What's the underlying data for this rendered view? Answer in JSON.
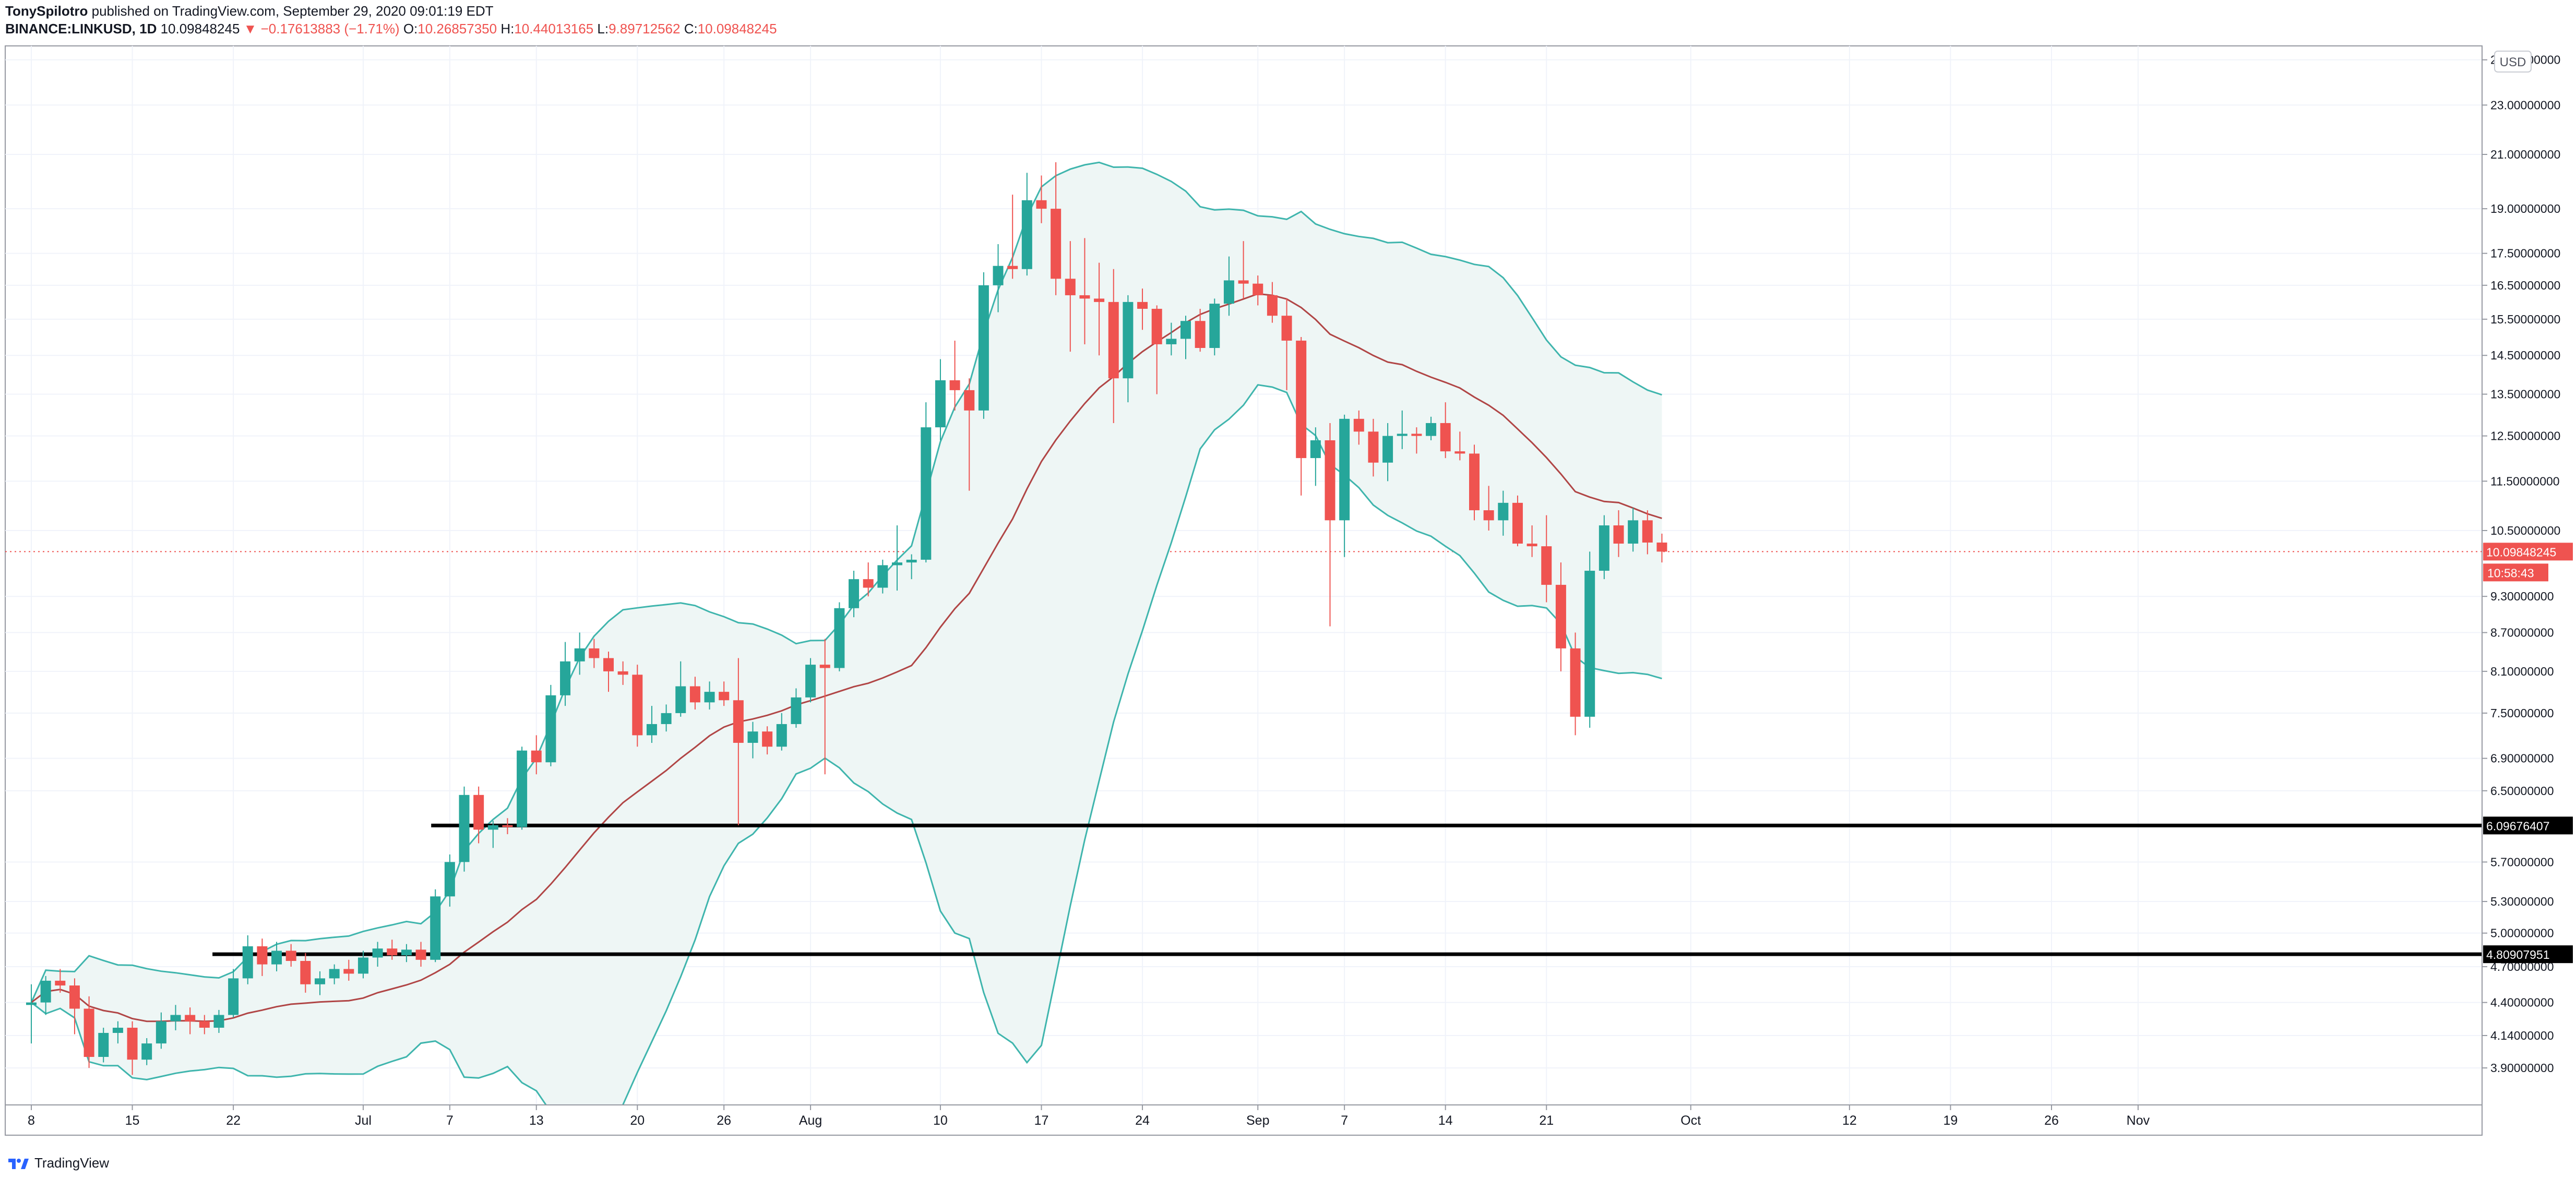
{
  "header": {
    "author": "TonySpilotro",
    "published": "published on TradingView.com, September 29, 2020 09:01:19 EDT",
    "symbol": "BINANCE:LINKUSD, 1D",
    "last": "10.09848245",
    "change": "▼ −0.17613883 (−1.71%)",
    "o_label": "O:",
    "o_value": "10.26857350",
    "h_label": "H:",
    "h_value": "10.44013165",
    "l_label": "L:",
    "l_value": "9.89712562",
    "c_label": "C:",
    "c_value": "10.09848245"
  },
  "footer": {
    "brand": "TradingView"
  },
  "chart_data": {
    "type": "candlestick",
    "title": "BINANCE:LINKUSD, 1D",
    "currency": "USD",
    "x_ticks": [
      "8",
      "15",
      "22",
      "Jul",
      "7",
      "13",
      "20",
      "26",
      "Aug",
      "10",
      "17",
      "24",
      "Sep",
      "7",
      "14",
      "21",
      "Oct",
      "12",
      "19",
      "26",
      "Nov"
    ],
    "y_ticks": [
      "25.00000000",
      "23.00000000",
      "21.00000000",
      "19.00000000",
      "17.50000000",
      "16.50000000",
      "15.50000000",
      "14.50000000",
      "13.50000000",
      "12.50000000",
      "11.50000000",
      "10.50000000",
      "9.30000000",
      "8.70000000",
      "8.10000000",
      "7.50000000",
      "6.90000000",
      "6.50000000",
      "5.70000000",
      "5.30000000",
      "5.00000000",
      "4.70000000",
      "4.40000000",
      "4.14000000",
      "3.90000000"
    ],
    "price_label": "10.09848245",
    "countdown_label": "10:58:43",
    "horizontal_lines": [
      {
        "value": 6.09676407,
        "label": "6.09676407"
      },
      {
        "value": 4.80907951,
        "label": "4.80907951"
      }
    ],
    "colors": {
      "up": "#26a69a",
      "down": "#ef5350",
      "basis": "#b04545",
      "band": "#3fb5ad",
      "band_fill": "#eef6f5",
      "line": "#000000"
    },
    "candles": [
      {
        "date": "2020-06-08",
        "o": 4.38,
        "h": 4.55,
        "l": 4.08,
        "c": 4.4
      },
      {
        "date": "2020-06-09",
        "o": 4.4,
        "h": 4.62,
        "l": 4.3,
        "c": 4.58
      },
      {
        "date": "2020-06-10",
        "o": 4.58,
        "h": 4.68,
        "l": 4.48,
        "c": 4.54
      },
      {
        "date": "2020-06-11",
        "o": 4.54,
        "h": 4.6,
        "l": 4.15,
        "c": 4.35
      },
      {
        "date": "2020-06-12",
        "o": 4.35,
        "h": 4.45,
        "l": 3.9,
        "c": 3.98
      },
      {
        "date": "2020-06-13",
        "o": 3.98,
        "h": 4.2,
        "l": 3.94,
        "c": 4.16
      },
      {
        "date": "2020-06-14",
        "o": 4.16,
        "h": 4.25,
        "l": 4.08,
        "c": 4.2
      },
      {
        "date": "2020-06-15",
        "o": 4.2,
        "h": 4.25,
        "l": 3.85,
        "c": 3.96
      },
      {
        "date": "2020-06-16",
        "o": 3.96,
        "h": 4.12,
        "l": 3.92,
        "c": 4.08
      },
      {
        "date": "2020-06-17",
        "o": 4.08,
        "h": 4.32,
        "l": 4.04,
        "c": 4.25
      },
      {
        "date": "2020-06-18",
        "o": 4.25,
        "h": 4.38,
        "l": 4.18,
        "c": 4.3
      },
      {
        "date": "2020-06-19",
        "o": 4.3,
        "h": 4.36,
        "l": 4.15,
        "c": 4.25
      },
      {
        "date": "2020-06-20",
        "o": 4.25,
        "h": 4.3,
        "l": 4.15,
        "c": 4.2
      },
      {
        "date": "2020-06-21",
        "o": 4.2,
        "h": 4.34,
        "l": 4.16,
        "c": 4.3
      },
      {
        "date": "2020-06-22",
        "o": 4.3,
        "h": 4.68,
        "l": 4.28,
        "c": 4.6
      },
      {
        "date": "2020-06-23",
        "o": 4.6,
        "h": 4.98,
        "l": 4.55,
        "c": 4.88
      },
      {
        "date": "2020-06-24",
        "o": 4.88,
        "h": 4.95,
        "l": 4.62,
        "c": 4.72
      },
      {
        "date": "2020-06-25",
        "o": 4.72,
        "h": 4.92,
        "l": 4.66,
        "c": 4.84
      },
      {
        "date": "2020-06-26",
        "o": 4.84,
        "h": 4.9,
        "l": 4.7,
        "c": 4.75
      },
      {
        "date": "2020-06-27",
        "o": 4.75,
        "h": 4.82,
        "l": 4.48,
        "c": 4.55
      },
      {
        "date": "2020-06-28",
        "o": 4.55,
        "h": 4.66,
        "l": 4.46,
        "c": 4.6
      },
      {
        "date": "2020-06-29",
        "o": 4.6,
        "h": 4.72,
        "l": 4.55,
        "c": 4.68
      },
      {
        "date": "2020-06-30",
        "o": 4.68,
        "h": 4.76,
        "l": 4.58,
        "c": 4.64
      },
      {
        "date": "2020-07-01",
        "o": 4.64,
        "h": 4.84,
        "l": 4.6,
        "c": 4.78
      },
      {
        "date": "2020-07-02",
        "o": 4.78,
        "h": 4.92,
        "l": 4.7,
        "c": 4.86
      },
      {
        "date": "2020-07-03",
        "o": 4.86,
        "h": 4.94,
        "l": 4.76,
        "c": 4.8
      },
      {
        "date": "2020-07-04",
        "o": 4.8,
        "h": 4.9,
        "l": 4.74,
        "c": 4.85
      },
      {
        "date": "2020-07-05",
        "o": 4.85,
        "h": 4.92,
        "l": 4.7,
        "c": 4.76
      },
      {
        "date": "2020-07-06",
        "o": 4.76,
        "h": 5.42,
        "l": 4.74,
        "c": 5.35
      },
      {
        "date": "2020-07-07",
        "o": 5.35,
        "h": 5.78,
        "l": 5.25,
        "c": 5.7
      },
      {
        "date": "2020-07-08",
        "o": 5.7,
        "h": 6.55,
        "l": 5.6,
        "c": 6.45
      },
      {
        "date": "2020-07-09",
        "o": 6.45,
        "h": 6.55,
        "l": 5.9,
        "c": 6.05
      },
      {
        "date": "2020-07-10",
        "o": 6.05,
        "h": 6.15,
        "l": 5.85,
        "c": 6.1
      },
      {
        "date": "2020-07-11",
        "o": 6.1,
        "h": 6.18,
        "l": 6.0,
        "c": 6.08
      },
      {
        "date": "2020-07-12",
        "o": 6.08,
        "h": 7.05,
        "l": 6.05,
        "c": 7.0
      },
      {
        "date": "2020-07-13",
        "o": 7.0,
        "h": 7.2,
        "l": 6.7,
        "c": 6.85
      },
      {
        "date": "2020-07-14",
        "o": 6.85,
        "h": 7.9,
        "l": 6.8,
        "c": 7.75
      },
      {
        "date": "2020-07-15",
        "o": 7.75,
        "h": 8.55,
        "l": 7.6,
        "c": 8.25
      },
      {
        "date": "2020-07-16",
        "o": 8.25,
        "h": 8.7,
        "l": 8.05,
        "c": 8.45
      },
      {
        "date": "2020-07-17",
        "o": 8.45,
        "h": 8.6,
        "l": 8.15,
        "c": 8.3
      },
      {
        "date": "2020-07-18",
        "o": 8.3,
        "h": 8.4,
        "l": 7.8,
        "c": 8.1
      },
      {
        "date": "2020-07-19",
        "o": 8.1,
        "h": 8.25,
        "l": 7.9,
        "c": 8.05
      },
      {
        "date": "2020-07-20",
        "o": 8.05,
        "h": 8.2,
        "l": 7.05,
        "c": 7.2
      },
      {
        "date": "2020-07-21",
        "o": 7.2,
        "h": 7.6,
        "l": 7.1,
        "c": 7.35
      },
      {
        "date": "2020-07-22",
        "o": 7.35,
        "h": 7.62,
        "l": 7.25,
        "c": 7.5
      },
      {
        "date": "2020-07-23",
        "o": 7.5,
        "h": 8.25,
        "l": 7.45,
        "c": 7.88
      },
      {
        "date": "2020-07-24",
        "o": 7.88,
        "h": 8.02,
        "l": 7.55,
        "c": 7.65
      },
      {
        "date": "2020-07-25",
        "o": 7.65,
        "h": 7.95,
        "l": 7.55,
        "c": 7.8
      },
      {
        "date": "2020-07-26",
        "o": 7.8,
        "h": 7.95,
        "l": 7.6,
        "c": 7.68
      },
      {
        "date": "2020-07-27",
        "o": 7.68,
        "h": 8.3,
        "l": 6.1,
        "c": 7.1
      },
      {
        "date": "2020-07-28",
        "o": 7.1,
        "h": 7.38,
        "l": 6.9,
        "c": 7.25
      },
      {
        "date": "2020-07-29",
        "o": 7.25,
        "h": 7.32,
        "l": 6.95,
        "c": 7.05
      },
      {
        "date": "2020-07-30",
        "o": 7.05,
        "h": 7.5,
        "l": 7.0,
        "c": 7.35
      },
      {
        "date": "2020-07-31",
        "o": 7.35,
        "h": 7.85,
        "l": 7.3,
        "c": 7.72
      },
      {
        "date": "2020-08-01",
        "o": 7.72,
        "h": 8.3,
        "l": 7.65,
        "c": 8.2
      },
      {
        "date": "2020-08-02",
        "o": 8.2,
        "h": 8.6,
        "l": 6.7,
        "c": 8.15
      },
      {
        "date": "2020-08-03",
        "o": 8.15,
        "h": 9.2,
        "l": 8.1,
        "c": 9.1
      },
      {
        "date": "2020-08-04",
        "o": 9.1,
        "h": 9.75,
        "l": 8.95,
        "c": 9.6
      },
      {
        "date": "2020-08-05",
        "o": 9.6,
        "h": 9.9,
        "l": 9.3,
        "c": 9.45
      },
      {
        "date": "2020-08-06",
        "o": 9.45,
        "h": 9.95,
        "l": 9.35,
        "c": 9.85
      },
      {
        "date": "2020-08-07",
        "o": 9.85,
        "h": 10.6,
        "l": 9.4,
        "c": 9.9
      },
      {
        "date": "2020-08-08",
        "o": 9.9,
        "h": 10.05,
        "l": 9.6,
        "c": 9.95
      },
      {
        "date": "2020-08-09",
        "o": 9.95,
        "h": 13.3,
        "l": 9.9,
        "c": 12.7
      },
      {
        "date": "2020-08-10",
        "o": 12.7,
        "h": 14.4,
        "l": 12.4,
        "c": 13.85
      },
      {
        "date": "2020-08-11",
        "o": 13.85,
        "h": 14.9,
        "l": 13.1,
        "c": 13.6
      },
      {
        "date": "2020-08-12",
        "o": 13.6,
        "h": 13.9,
        "l": 11.3,
        "c": 13.1
      },
      {
        "date": "2020-08-13",
        "o": 13.1,
        "h": 16.9,
        "l": 12.9,
        "c": 16.5
      },
      {
        "date": "2020-08-14",
        "o": 16.5,
        "h": 17.8,
        "l": 15.7,
        "c": 17.1
      },
      {
        "date": "2020-08-15",
        "o": 17.1,
        "h": 19.5,
        "l": 16.7,
        "c": 17.0
      },
      {
        "date": "2020-08-16",
        "o": 17.0,
        "h": 20.3,
        "l": 16.8,
        "c": 19.3
      },
      {
        "date": "2020-08-17",
        "o": 19.3,
        "h": 20.2,
        "l": 18.5,
        "c": 19.0
      },
      {
        "date": "2020-08-18",
        "o": 19.0,
        "h": 20.7,
        "l": 16.2,
        "c": 16.7
      },
      {
        "date": "2020-08-19",
        "o": 16.7,
        "h": 17.9,
        "l": 14.6,
        "c": 16.2
      },
      {
        "date": "2020-08-20",
        "o": 16.2,
        "h": 18.0,
        "l": 14.8,
        "c": 16.1
      },
      {
        "date": "2020-08-21",
        "o": 16.1,
        "h": 17.2,
        "l": 14.5,
        "c": 16.0
      },
      {
        "date": "2020-08-22",
        "o": 16.0,
        "h": 17.0,
        "l": 12.8,
        "c": 13.9
      },
      {
        "date": "2020-08-23",
        "o": 13.9,
        "h": 16.2,
        "l": 13.3,
        "c": 16.0
      },
      {
        "date": "2020-08-24",
        "o": 16.0,
        "h": 16.4,
        "l": 15.2,
        "c": 15.8
      },
      {
        "date": "2020-08-25",
        "o": 15.8,
        "h": 15.9,
        "l": 13.5,
        "c": 14.8
      },
      {
        "date": "2020-08-26",
        "o": 14.8,
        "h": 15.4,
        "l": 14.5,
        "c": 14.95
      },
      {
        "date": "2020-08-27",
        "o": 14.95,
        "h": 15.6,
        "l": 14.4,
        "c": 15.45
      },
      {
        "date": "2020-08-28",
        "o": 15.45,
        "h": 15.8,
        "l": 14.6,
        "c": 14.7
      },
      {
        "date": "2020-08-29",
        "o": 14.7,
        "h": 16.1,
        "l": 14.5,
        "c": 15.95
      },
      {
        "date": "2020-08-30",
        "o": 15.95,
        "h": 17.4,
        "l": 15.6,
        "c": 16.65
      },
      {
        "date": "2020-08-31",
        "o": 16.65,
        "h": 17.9,
        "l": 16.1,
        "c": 16.55
      },
      {
        "date": "2020-09-01",
        "o": 16.55,
        "h": 16.8,
        "l": 15.9,
        "c": 16.2
      },
      {
        "date": "2020-09-02",
        "o": 16.2,
        "h": 16.6,
        "l": 15.4,
        "c": 15.6
      },
      {
        "date": "2020-09-03",
        "o": 15.6,
        "h": 16.1,
        "l": 13.6,
        "c": 14.9
      },
      {
        "date": "2020-09-04",
        "o": 14.9,
        "h": 15.0,
        "l": 11.2,
        "c": 12.0
      },
      {
        "date": "2020-09-05",
        "o": 12.0,
        "h": 12.7,
        "l": 11.4,
        "c": 12.4
      },
      {
        "date": "2020-09-06",
        "o": 12.4,
        "h": 12.8,
        "l": 8.8,
        "c": 10.7
      },
      {
        "date": "2020-09-07",
        "o": 10.7,
        "h": 13.0,
        "l": 10.0,
        "c": 12.9
      },
      {
        "date": "2020-09-08",
        "o": 12.9,
        "h": 13.1,
        "l": 12.3,
        "c": 12.6
      },
      {
        "date": "2020-09-09",
        "o": 12.6,
        "h": 12.9,
        "l": 11.6,
        "c": 11.9
      },
      {
        "date": "2020-09-10",
        "o": 11.9,
        "h": 12.8,
        "l": 11.5,
        "c": 12.5
      },
      {
        "date": "2020-09-11",
        "o": 12.5,
        "h": 13.1,
        "l": 12.2,
        "c": 12.55
      },
      {
        "date": "2020-09-12",
        "o": 12.55,
        "h": 12.7,
        "l": 12.1,
        "c": 12.5
      },
      {
        "date": "2020-09-13",
        "o": 12.5,
        "h": 12.95,
        "l": 12.4,
        "c": 12.8
      },
      {
        "date": "2020-09-14",
        "o": 12.8,
        "h": 13.3,
        "l": 12.0,
        "c": 12.15
      },
      {
        "date": "2020-09-15",
        "o": 12.15,
        "h": 12.6,
        "l": 11.95,
        "c": 12.1
      },
      {
        "date": "2020-09-16",
        "o": 12.1,
        "h": 12.3,
        "l": 10.7,
        "c": 10.9
      },
      {
        "date": "2020-09-17",
        "o": 10.9,
        "h": 11.4,
        "l": 10.5,
        "c": 10.7
      },
      {
        "date": "2020-09-18",
        "o": 10.7,
        "h": 11.3,
        "l": 10.4,
        "c": 11.05
      },
      {
        "date": "2020-09-19",
        "o": 11.05,
        "h": 11.2,
        "l": 10.2,
        "c": 10.25
      },
      {
        "date": "2020-09-20",
        "o": 10.25,
        "h": 10.6,
        "l": 10.0,
        "c": 10.2
      },
      {
        "date": "2020-09-21",
        "o": 10.2,
        "h": 10.8,
        "l": 9.2,
        "c": 9.5
      },
      {
        "date": "2020-09-22",
        "o": 9.5,
        "h": 9.9,
        "l": 8.1,
        "c": 8.45
      },
      {
        "date": "2020-09-23",
        "o": 8.45,
        "h": 8.7,
        "l": 7.2,
        "c": 7.45
      },
      {
        "date": "2020-09-24",
        "o": 7.45,
        "h": 10.1,
        "l": 7.3,
        "c": 9.75
      },
      {
        "date": "2020-09-25",
        "o": 9.75,
        "h": 10.8,
        "l": 9.6,
        "c": 10.6
      },
      {
        "date": "2020-09-26",
        "o": 10.6,
        "h": 10.9,
        "l": 10.0,
        "c": 10.25
      },
      {
        "date": "2020-09-27",
        "o": 10.25,
        "h": 10.95,
        "l": 10.1,
        "c": 10.7
      },
      {
        "date": "2020-09-28",
        "o": 10.7,
        "h": 10.9,
        "l": 10.05,
        "c": 10.27
      },
      {
        "date": "2020-09-29",
        "o": 10.27,
        "h": 10.44,
        "l": 9.9,
        "c": 10.1
      }
    ]
  }
}
